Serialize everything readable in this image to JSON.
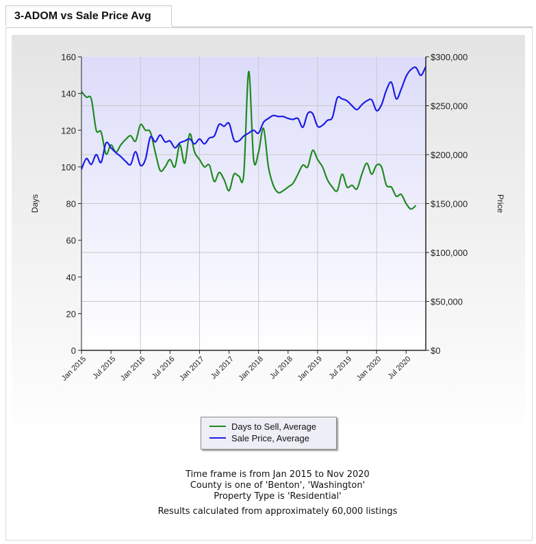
{
  "tab": {
    "title": "3-ADOM vs Sale Price Avg"
  },
  "colors": {
    "days": "#1f8a1f",
    "price": "#1a1ae6",
    "plot_top": "#dcdcfa",
    "plot_bottom": "#ffffff"
  },
  "chart_data": {
    "type": "line",
    "title": "",
    "x_ticks": [
      "Jan 2015",
      "Jul 2015",
      "Jan 2016",
      "Jul 2016",
      "Jan 2017",
      "Jul 2017",
      "Jan 2018",
      "Jul 2018",
      "Jan 2019",
      "Jul 2019",
      "Jan 2020",
      "Jul 2020"
    ],
    "x_range": [
      "Jan 2015",
      "Nov 2020"
    ],
    "y_left": {
      "label": "Days",
      "range": [
        0,
        160
      ],
      "ticks": [
        "0",
        "20",
        "40",
        "60",
        "80",
        "100",
        "120",
        "140",
        "160"
      ]
    },
    "y_right": {
      "label": "Price",
      "range": [
        0,
        300000
      ],
      "ticks": [
        "$0",
        "$50,000",
        "$100,000",
        "$150,000",
        "$200,000",
        "$250,000",
        "$300,000"
      ]
    },
    "grid": true,
    "legend_position": "bottom",
    "series": [
      {
        "name": "Days to Sell, Average",
        "axis": "left",
        "x": [
          "2015-01",
          "2015-02",
          "2015-03",
          "2015-04",
          "2015-05",
          "2015-06",
          "2015-07",
          "2015-08",
          "2015-09",
          "2015-10",
          "2015-11",
          "2015-12",
          "2016-01",
          "2016-02",
          "2016-03",
          "2016-04",
          "2016-05",
          "2016-06",
          "2016-07",
          "2016-08",
          "2016-09",
          "2016-10",
          "2016-11",
          "2016-12",
          "2017-01",
          "2017-02",
          "2017-03",
          "2017-04",
          "2017-05",
          "2017-06",
          "2017-07",
          "2017-08",
          "2017-09",
          "2017-10",
          "2017-11",
          "2017-12",
          "2018-01",
          "2018-02",
          "2018-03",
          "2018-04",
          "2018-05",
          "2018-06",
          "2018-07",
          "2018-08",
          "2018-09",
          "2018-10",
          "2018-11",
          "2018-12",
          "2019-01",
          "2019-02",
          "2019-03",
          "2019-04",
          "2019-05",
          "2019-06",
          "2019-07",
          "2019-08",
          "2019-09",
          "2019-10",
          "2019-11",
          "2019-12",
          "2020-01",
          "2020-02",
          "2020-03",
          "2020-04",
          "2020-05",
          "2020-06",
          "2020-07",
          "2020-08",
          "2020-09",
          "2020-10",
          "2020-11"
        ],
        "values": [
          141,
          138,
          137,
          120,
          119,
          107,
          112,
          108,
          112,
          115,
          117,
          114,
          123,
          120,
          119,
          108,
          98,
          100,
          104,
          100,
          112,
          102,
          118,
          108,
          104,
          100,
          101,
          92,
          97,
          93,
          87,
          96,
          95,
          96,
          152,
          104,
          108,
          121,
          100,
          90,
          86,
          87,
          89,
          91,
          96,
          101,
          100,
          109,
          104,
          100,
          93,
          89,
          87,
          96,
          89,
          90,
          88,
          96,
          102,
          96,
          101,
          100,
          90,
          89,
          84,
          85,
          80,
          77,
          79,
          null,
          null
        ]
      },
      {
        "name": "Sale Price, Average",
        "axis": "right",
        "x": [
          "2015-01",
          "2015-02",
          "2015-03",
          "2015-04",
          "2015-05",
          "2015-06",
          "2015-07",
          "2015-08",
          "2015-09",
          "2015-10",
          "2015-11",
          "2015-12",
          "2016-01",
          "2016-02",
          "2016-03",
          "2016-04",
          "2016-05",
          "2016-06",
          "2016-07",
          "2016-08",
          "2016-09",
          "2016-10",
          "2016-11",
          "2016-12",
          "2017-01",
          "2017-02",
          "2017-03",
          "2017-04",
          "2017-05",
          "2017-06",
          "2017-07",
          "2017-08",
          "2017-09",
          "2017-10",
          "2017-11",
          "2017-12",
          "2018-01",
          "2018-02",
          "2018-03",
          "2018-04",
          "2018-05",
          "2018-06",
          "2018-07",
          "2018-08",
          "2018-09",
          "2018-10",
          "2018-11",
          "2018-12",
          "2019-01",
          "2019-02",
          "2019-03",
          "2019-04",
          "2019-05",
          "2019-06",
          "2019-07",
          "2019-08",
          "2019-09",
          "2019-10",
          "2019-11",
          "2019-12",
          "2020-01",
          "2020-02",
          "2020-03",
          "2020-04",
          "2020-05",
          "2020-06",
          "2020-07",
          "2020-08",
          "2020-09",
          "2020-10",
          "2020-11"
        ],
        "values": [
          185000,
          196000,
          190000,
          200000,
          192000,
          212000,
          207000,
          202000,
          198000,
          193000,
          190000,
          203000,
          189000,
          195000,
          218000,
          213000,
          220000,
          213000,
          214000,
          207000,
          212000,
          214000,
          216000,
          211000,
          216000,
          211000,
          217000,
          219000,
          231000,
          229000,
          232000,
          215000,
          214000,
          219000,
          222000,
          225000,
          222000,
          233000,
          237000,
          240000,
          239000,
          239000,
          237000,
          236000,
          237000,
          228000,
          242000,
          242000,
          229000,
          230000,
          235000,
          238000,
          258000,
          257000,
          255000,
          250000,
          246000,
          251000,
          255000,
          256000,
          245000,
          251000,
          266000,
          274000,
          257000,
          267000,
          280000,
          287000,
          289000,
          281000,
          290000
        ]
      }
    ]
  },
  "notes": {
    "timeframe": "Time frame is from Jan 2015 to Nov 2020",
    "county": "County is one of 'Benton', 'Washington'",
    "property_type": "Property Type is 'Residential'",
    "results": "Results calculated from approximately 60,000 listings"
  }
}
